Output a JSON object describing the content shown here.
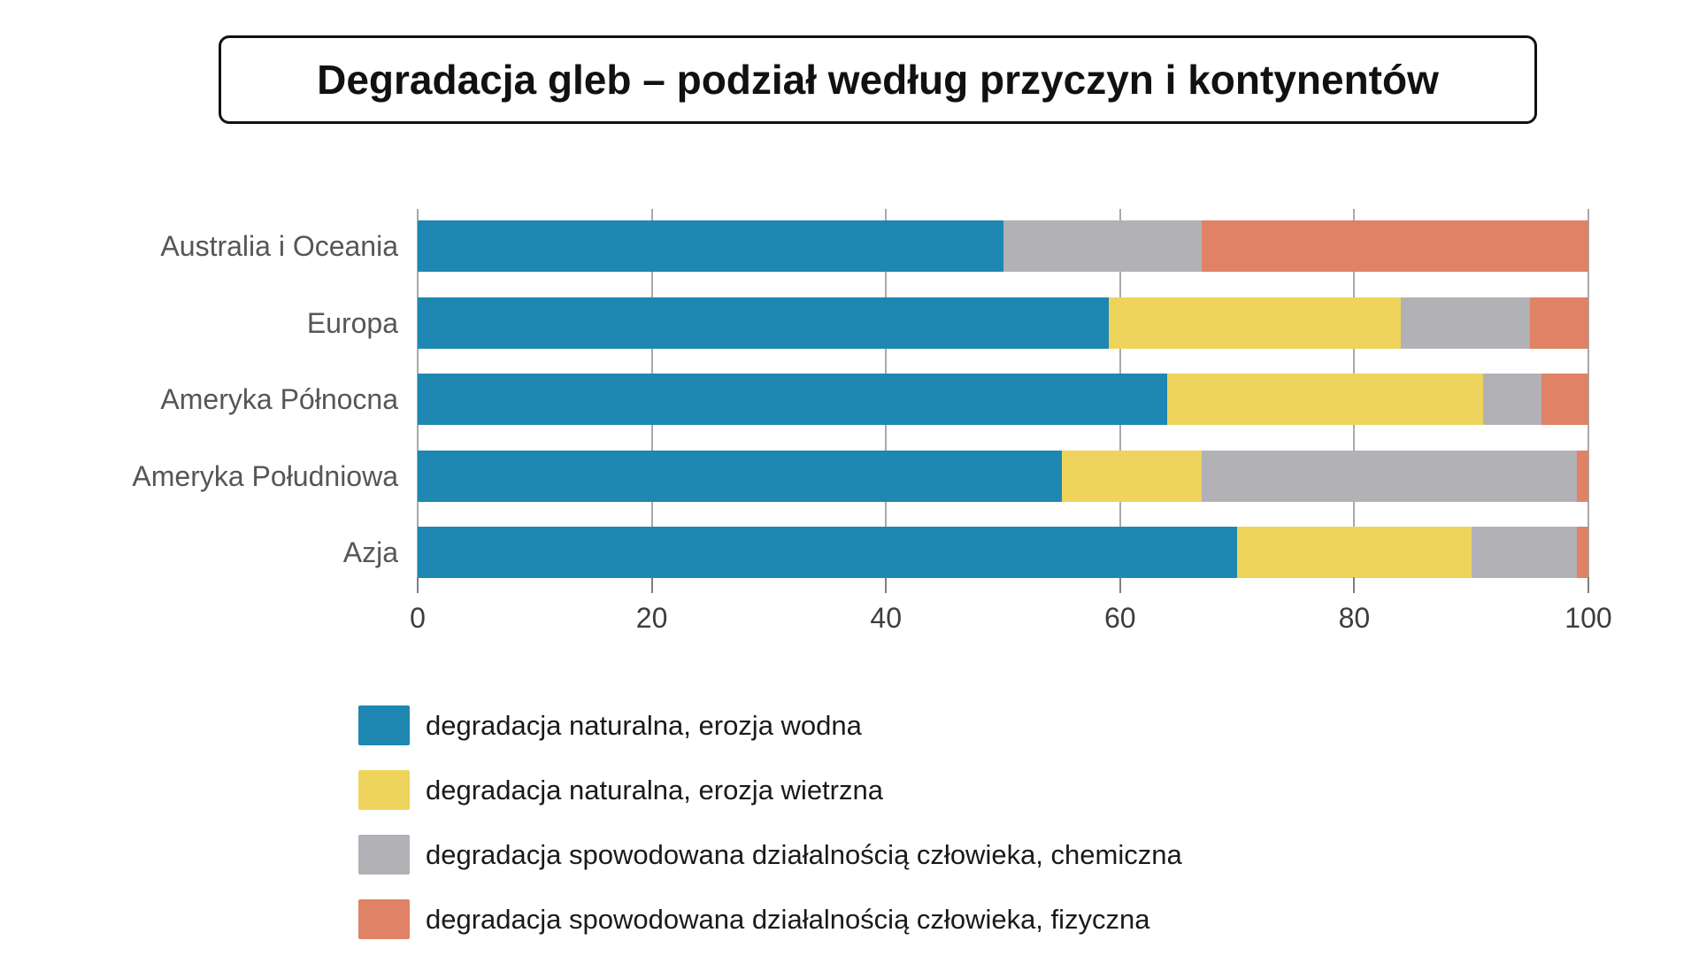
{
  "title": "Degradacja gleb – podział według przyczyn i kontynentów",
  "chart_data": {
    "type": "bar",
    "orientation": "horizontal",
    "stacked": true,
    "title": "Degradacja gleb – podział według przyczyn i kontynentów",
    "categories": [
      "Australia i Oceania",
      "Europa",
      "Ameryka Północna",
      "Ameryka Południowa",
      "Azja"
    ],
    "series": [
      {
        "name": "degradacja naturalna, erozja wodna",
        "color": "#1e87b2",
        "values": [
          50,
          59,
          64,
          55,
          70
        ]
      },
      {
        "name": "degradacja naturalna, erozja wietrzna",
        "color": "#eed45c",
        "values": [
          0,
          25,
          27,
          12,
          20
        ]
      },
      {
        "name": "degradacja spowodowana działalnością człowieka, chemiczna",
        "color": "#b2b1b6",
        "values": [
          17,
          11,
          5,
          32,
          9
        ]
      },
      {
        "name": "degradacja spowodowana działalnością człowieka, fizyczna",
        "color": "#e08266",
        "values": [
          33,
          5,
          4,
          1,
          1
        ]
      }
    ],
    "xlabel": "",
    "ylabel": "",
    "xlim": [
      0,
      100
    ],
    "x_ticks": [
      0,
      20,
      40,
      60,
      80,
      100
    ],
    "grid": true,
    "legend_position": "bottom-left"
  },
  "style_colors": {
    "gridline": "#a9a9a9",
    "tick": "#7f7f7f",
    "y_label_text": "#565656",
    "x_label_text": "#3d3d3d",
    "legend_text": "#1a1a1a",
    "title_text": "#111111"
  }
}
